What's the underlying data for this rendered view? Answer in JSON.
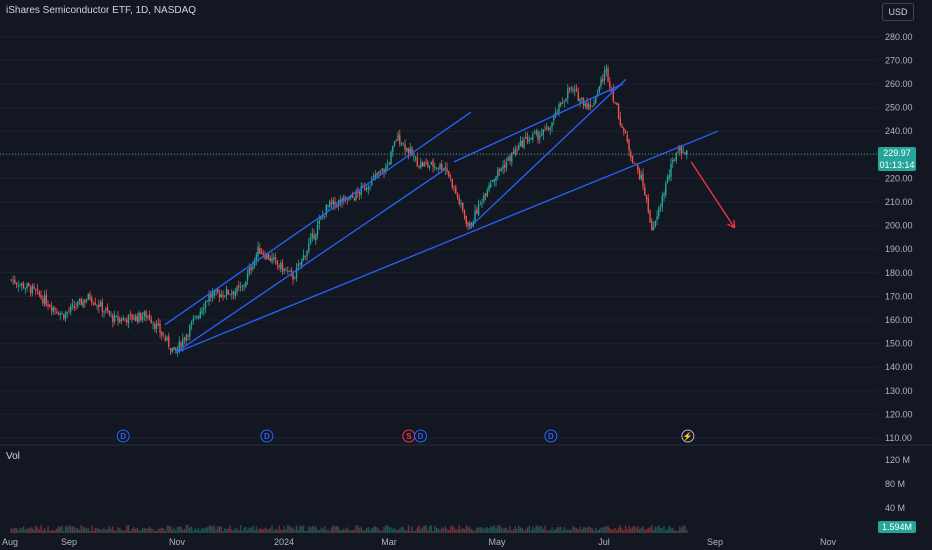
{
  "header": {
    "title": "iShares Semiconductor ETF, 1D, NASDAQ",
    "currency": "USD",
    "vol_label": "Vol"
  },
  "price_badge": {
    "price": "229.97",
    "countdown": "01:13:14"
  },
  "volume_badge": "1.594M",
  "colors": {
    "background": "#131722",
    "up": "#26a69a",
    "down": "#ef5350",
    "trendline": "#2962ff",
    "projection_arrow": "#f23645",
    "dividend_marker": "#2962ff",
    "split_marker": "#f23645"
  },
  "chart_data": {
    "type": "candlestick",
    "symbol": "iShares Semiconductor ETF",
    "interval": "1D",
    "exchange": "NASDAQ",
    "x_ticks": [
      "Aug",
      "Sep",
      "Nov",
      "2024",
      "Mar",
      "May",
      "Jul",
      "Sep",
      "Nov"
    ],
    "y_ticks": [
      280,
      270,
      260,
      250,
      240,
      230,
      220,
      210,
      200,
      190,
      180,
      170,
      160,
      150,
      140,
      130,
      120,
      110
    ],
    "ylim": [
      110,
      285
    ],
    "volume_ticks": [
      "120 M",
      "80 M",
      "40 M"
    ],
    "price_path": [
      {
        "date": "2023-07-20",
        "price": 177
      },
      {
        "date": "2023-08-01",
        "price": 173
      },
      {
        "date": "2023-08-20",
        "price": 162
      },
      {
        "date": "2023-09-05",
        "price": 170
      },
      {
        "date": "2023-09-20",
        "price": 160
      },
      {
        "date": "2023-10-10",
        "price": 162
      },
      {
        "date": "2023-10-26",
        "price": 146
      },
      {
        "date": "2023-11-15",
        "price": 170
      },
      {
        "date": "2023-12-05",
        "price": 173
      },
      {
        "date": "2023-12-15",
        "price": 190
      },
      {
        "date": "2024-01-05",
        "price": 178
      },
      {
        "date": "2024-01-25",
        "price": 208
      },
      {
        "date": "2024-02-10",
        "price": 212
      },
      {
        "date": "2024-03-01",
        "price": 225
      },
      {
        "date": "2024-03-07",
        "price": 238
      },
      {
        "date": "2024-03-20",
        "price": 226
      },
      {
        "date": "2024-04-05",
        "price": 225
      },
      {
        "date": "2024-04-19",
        "price": 199
      },
      {
        "date": "2024-05-01",
        "price": 218
      },
      {
        "date": "2024-05-22",
        "price": 236
      },
      {
        "date": "2024-06-05",
        "price": 240
      },
      {
        "date": "2024-06-18",
        "price": 258
      },
      {
        "date": "2024-07-01",
        "price": 250
      },
      {
        "date": "2024-07-10",
        "price": 266
      },
      {
        "date": "2024-07-17",
        "price": 248
      },
      {
        "date": "2024-07-25",
        "price": 230
      },
      {
        "date": "2024-08-01",
        "price": 218
      },
      {
        "date": "2024-08-07",
        "price": 197
      },
      {
        "date": "2024-08-15",
        "price": 218
      },
      {
        "date": "2024-08-22",
        "price": 233
      },
      {
        "date": "2024-08-28",
        "price": 229.97
      }
    ],
    "trendlines": [
      {
        "name": "upper channel 1",
        "from": {
          "date": "2023-10-20",
          "price": 158
        },
        "to": {
          "date": "2024-04-20",
          "price": 248
        }
      },
      {
        "name": "lower channel 1",
        "from": {
          "date": "2023-10-26",
          "price": 146
        },
        "to": {
          "date": "2024-04-05",
          "price": 224
        }
      },
      {
        "name": "upper channel 2",
        "from": {
          "date": "2024-04-19",
          "price": 199
        },
        "to": {
          "date": "2024-07-22",
          "price": 262
        }
      },
      {
        "name": "lower channel 2",
        "from": {
          "date": "2024-04-10",
          "price": 227
        },
        "to": {
          "date": "2024-07-20",
          "price": 260
        }
      },
      {
        "name": "long support",
        "from": {
          "date": "2023-10-26",
          "price": 146
        },
        "to": {
          "date": "2024-09-15",
          "price": 240
        }
      }
    ],
    "projection_arrow": {
      "from": {
        "date": "2024-08-30",
        "price": 227
      },
      "to": {
        "date": "2024-09-25",
        "price": 199
      }
    },
    "events": [
      {
        "type": "dividend",
        "label": "D",
        "date": "2023-09-25"
      },
      {
        "type": "dividend",
        "label": "D",
        "date": "2023-12-20"
      },
      {
        "type": "split",
        "label": "S",
        "date": "2024-03-14"
      },
      {
        "type": "dividend",
        "label": "D",
        "date": "2024-03-21"
      },
      {
        "type": "dividend",
        "label": "D",
        "date": "2024-06-07"
      },
      {
        "type": "earnings",
        "label": "⚡",
        "date": "2024-08-28"
      }
    ]
  }
}
